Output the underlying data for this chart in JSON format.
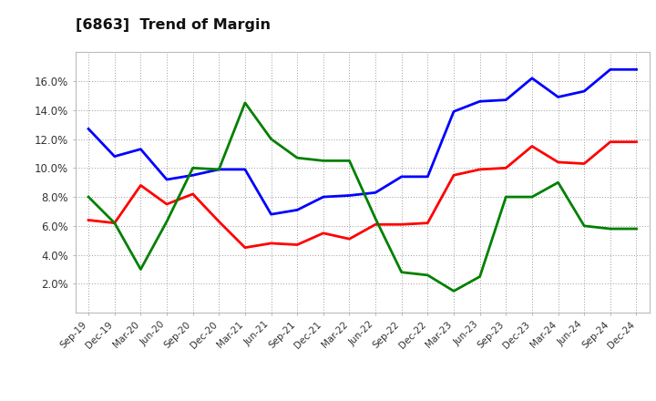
{
  "title": "[6863]  Trend of Margin",
  "x_labels": [
    "Sep-19",
    "Dec-19",
    "Mar-20",
    "Jun-20",
    "Sep-20",
    "Dec-20",
    "Mar-21",
    "Jun-21",
    "Sep-21",
    "Dec-21",
    "Mar-22",
    "Jun-22",
    "Sep-22",
    "Dec-22",
    "Mar-23",
    "Jun-23",
    "Sep-23",
    "Dec-23",
    "Mar-24",
    "Jun-24",
    "Sep-24",
    "Dec-24"
  ],
  "ordinary_income": [
    12.7,
    10.8,
    11.3,
    9.2,
    9.5,
    9.9,
    9.9,
    6.8,
    7.1,
    8.0,
    8.1,
    8.3,
    9.4,
    9.4,
    13.9,
    14.6,
    14.7,
    16.2,
    14.9,
    15.3,
    16.8,
    16.8
  ],
  "net_income": [
    6.4,
    6.2,
    8.8,
    7.5,
    8.2,
    6.3,
    4.5,
    4.8,
    4.7,
    5.5,
    5.1,
    6.1,
    6.1,
    6.2,
    9.5,
    9.9,
    10.0,
    11.5,
    10.4,
    10.3,
    11.8,
    11.8
  ],
  "operating_cashflow": [
    8.0,
    6.2,
    3.0,
    6.3,
    10.0,
    9.9,
    14.5,
    12.0,
    10.7,
    10.5,
    10.5,
    6.5,
    2.8,
    2.6,
    1.5,
    2.5,
    8.0,
    8.0,
    9.0,
    6.0,
    5.8,
    5.8
  ],
  "ylim": [
    0,
    18
  ],
  "ytick_labels": [
    "2.0%",
    "4.0%",
    "6.0%",
    "8.0%",
    "10.0%",
    "12.0%",
    "14.0%",
    "16.0%"
  ],
  "ytick_values": [
    2,
    4,
    6,
    8,
    10,
    12,
    14,
    16
  ],
  "colors": {
    "ordinary_income": "#0000ff",
    "net_income": "#ff0000",
    "operating_cashflow": "#008000"
  },
  "line_width": 2.0,
  "background_color": "#ffffff",
  "plot_background": "#ffffff",
  "grid_color": "#999999"
}
